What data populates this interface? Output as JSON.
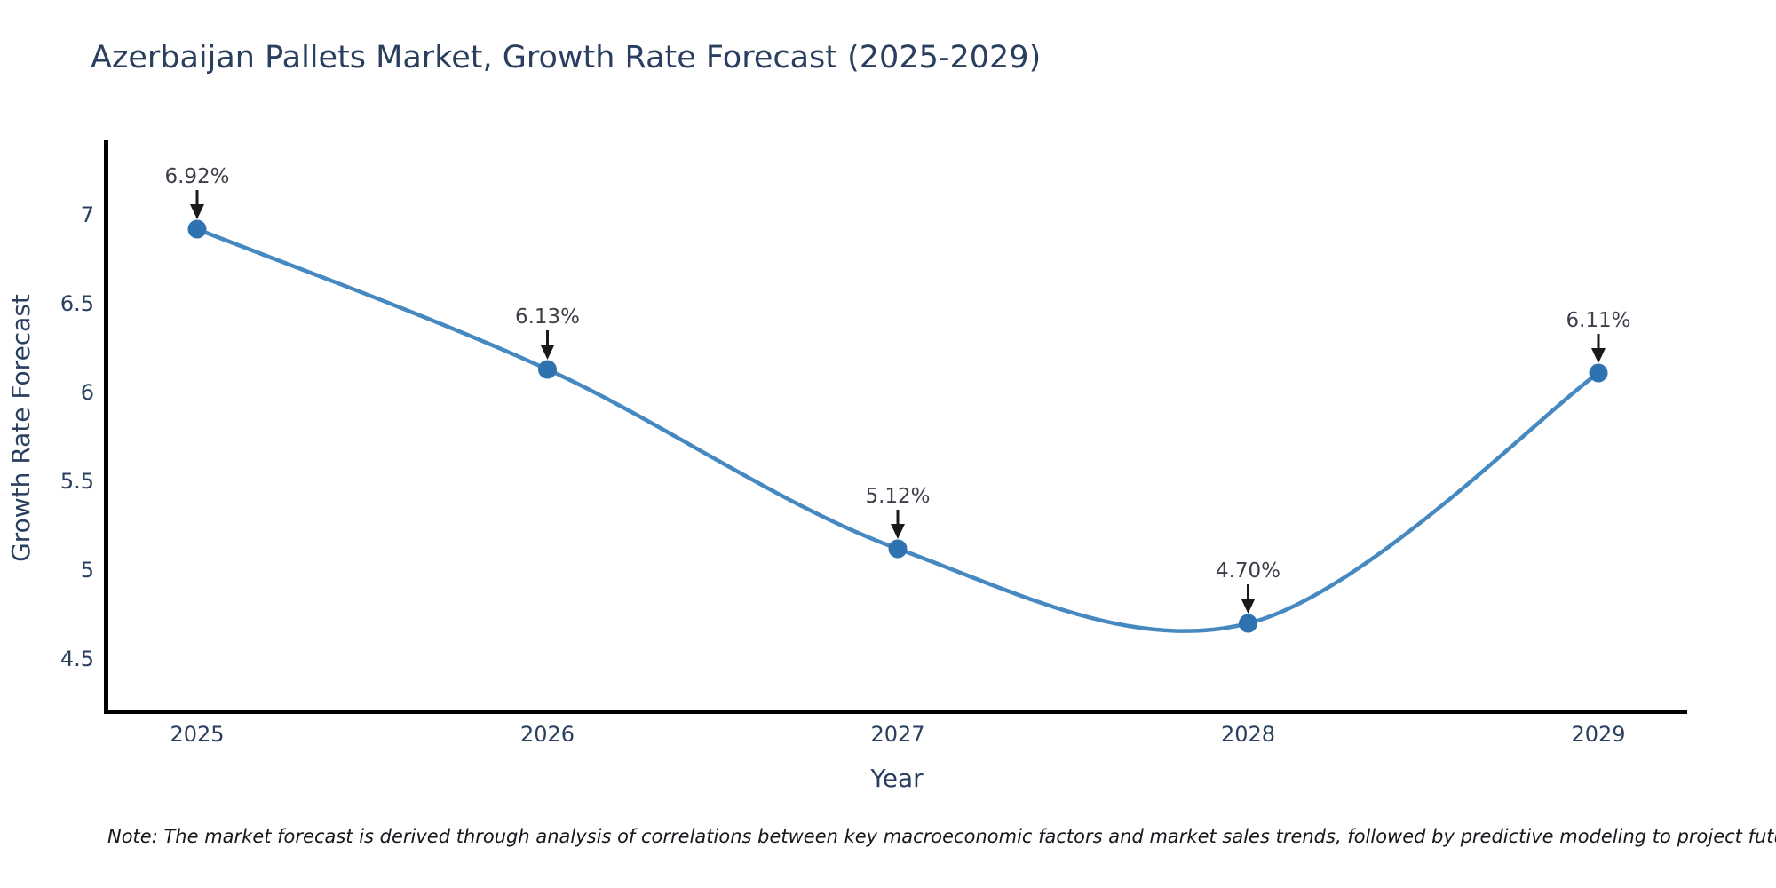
{
  "title": "Azerbaijan Pallets Market, Growth Rate Forecast (2025-2029)",
  "note": "Note: The market forecast is derived through analysis of correlations between key macroeconomic factors and market sales trends, followed by predictive modeling to project future sales",
  "chart_data": {
    "type": "line",
    "title": "Azerbaijan Pallets Market, Growth Rate Forecast (2025-2029)",
    "xlabel": "Year",
    "ylabel": "Growth Rate Forecast",
    "categories": [
      "2025",
      "2026",
      "2027",
      "2028",
      "2029"
    ],
    "values": [
      6.92,
      6.13,
      5.12,
      4.7,
      6.11
    ],
    "point_labels": [
      "6.92%",
      "6.13%",
      "5.12%",
      "4.70%",
      "6.11%"
    ],
    "yticks": [
      4.5,
      5,
      5.5,
      6,
      6.5,
      7
    ],
    "ylim": [
      4.2,
      7.44
    ],
    "line_shape": "spline",
    "grid": false,
    "legend": false,
    "colors": {
      "line": "#4688c0",
      "marker": "#2e73b0",
      "arrow": "#1a1a1a",
      "annotation_text": "#3c4049",
      "axis_text": "#2a3f5f",
      "spine": "#000000"
    }
  }
}
